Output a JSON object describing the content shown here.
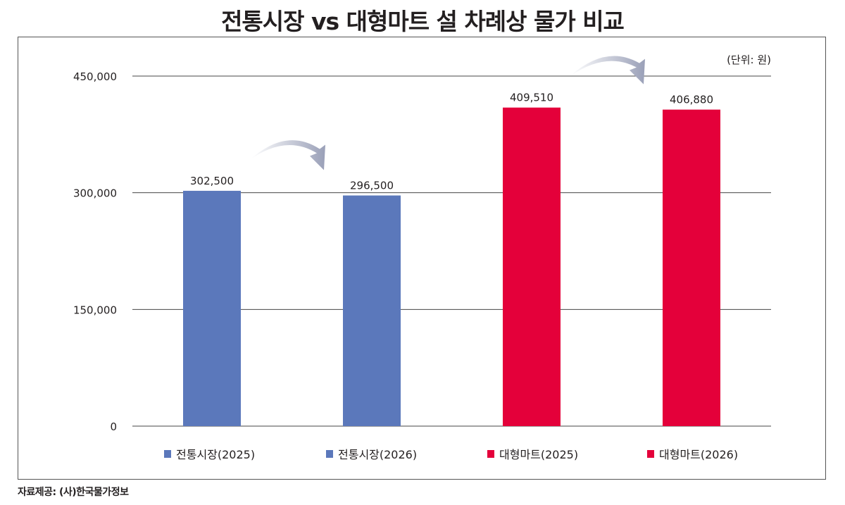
{
  "title": "전통시장 vs 대형마트 설 차례상 물가 비교",
  "source": "자료제공: (사)한국물가정보",
  "chart_data": {
    "type": "bar",
    "title": "전통시장 vs 대형마트 설 차례상 물가 비교",
    "unit_note": "(단위: 원)",
    "categories": [
      "전통시장(2025)",
      "전통시장(2026)",
      "대형마트(2025)",
      "대형마트(2026)"
    ],
    "values": [
      302500,
      296500,
      409510,
      406880
    ],
    "value_labels": [
      "302,500",
      "296,500",
      "409,510",
      "406,880"
    ],
    "colors": [
      "#5b78bb",
      "#5b78bb",
      "#e4003a",
      "#e4003a"
    ],
    "ylim": [
      0,
      450000
    ],
    "yticks": [
      0,
      150000,
      300000,
      450000
    ],
    "ytick_labels": [
      "0",
      "150,000",
      "300,000",
      "450,000"
    ],
    "grid": true,
    "legend_position": "bottom",
    "annotations": [
      "arrow from 전통시장(2025) to 전통시장(2026)",
      "arrow from 대형마트(2025) to 대형마트(2026)"
    ]
  }
}
